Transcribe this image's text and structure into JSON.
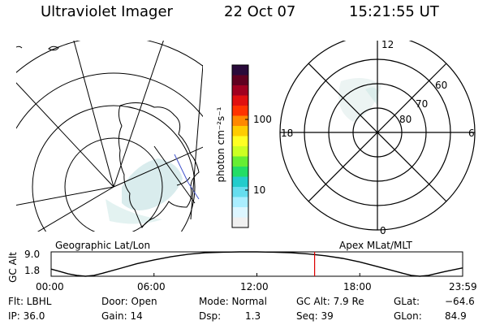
{
  "header": {
    "instrument": "Ultraviolet Imager",
    "date": "22 Oct 07",
    "time": "15:21:55 UT"
  },
  "colorbar": {
    "unit_label": "photon cm⁻²s⁻¹",
    "ticks": [
      "100",
      "10"
    ],
    "colors": [
      "#2a0a3a",
      "#600020",
      "#a00020",
      "#e01010",
      "#ff3300",
      "#ff8800",
      "#ffcc00",
      "#ffff22",
      "#ccff22",
      "#66ee33",
      "#22dd66",
      "#22cccc",
      "#66ddee",
      "#aaeeff",
      "#ddf6ff",
      "#f0f0f0"
    ]
  },
  "panels": {
    "geo_label": "Geographic Lat/Lon",
    "apex_label": "Apex MLat/MLT"
  },
  "polar": {
    "mlt_labels": {
      "top": "12",
      "left": "18",
      "right": "6",
      "bottom": "0"
    },
    "lat_labels": [
      "60",
      "70",
      "80"
    ]
  },
  "chart_data": {
    "type": "line",
    "title": "",
    "ylabel": "GC Alt",
    "yticks": [
      "9.0",
      "1.8"
    ],
    "xticks": [
      "00:00",
      "06:00",
      "12:00",
      "18:00",
      "23:59"
    ],
    "ylim": [
      1.0,
      9.2
    ],
    "xlim_hours": [
      0,
      24
    ],
    "series": [
      {
        "x": [
          0.0,
          0.5,
          1.0,
          1.5,
          2.0,
          2.5,
          3.0,
          4.0,
          5.0,
          6.0,
          7.0,
          8.0,
          9.0,
          10.0,
          11.0,
          12.0,
          13.0,
          14.0,
          15.0,
          16.0,
          17.0,
          18.0,
          19.0,
          20.0,
          20.5,
          21.0,
          21.5,
          22.0,
          23.0,
          23.98
        ],
        "y": [
          3.4,
          2.6,
          1.8,
          1.3,
          1.0,
          1.3,
          2.0,
          3.6,
          5.2,
          6.5,
          7.6,
          8.4,
          8.9,
          9.1,
          9.2,
          9.2,
          9.1,
          8.9,
          8.5,
          7.9,
          7.0,
          5.8,
          4.3,
          2.8,
          2.0,
          1.3,
          1.0,
          1.3,
          2.6,
          3.8
        ]
      }
    ],
    "marker": {
      "hour": 15.366,
      "color": "#dd0000"
    }
  },
  "info": {
    "filter": "Flt: LBHL",
    "ip": "IP: 36.0",
    "door": "Door: Open",
    "gain": "Gain: 14",
    "mode": "Mode: Normal",
    "dsp_label": "Dsp:",
    "dsp_value": "1.3",
    "gc_alt": "GC Alt: 7.9 Re",
    "seq": "Seq: 39",
    "glat_label": "GLat:",
    "glat_value": "−64.6",
    "glon_label": "GLon:",
    "glon_value": "84.9"
  }
}
